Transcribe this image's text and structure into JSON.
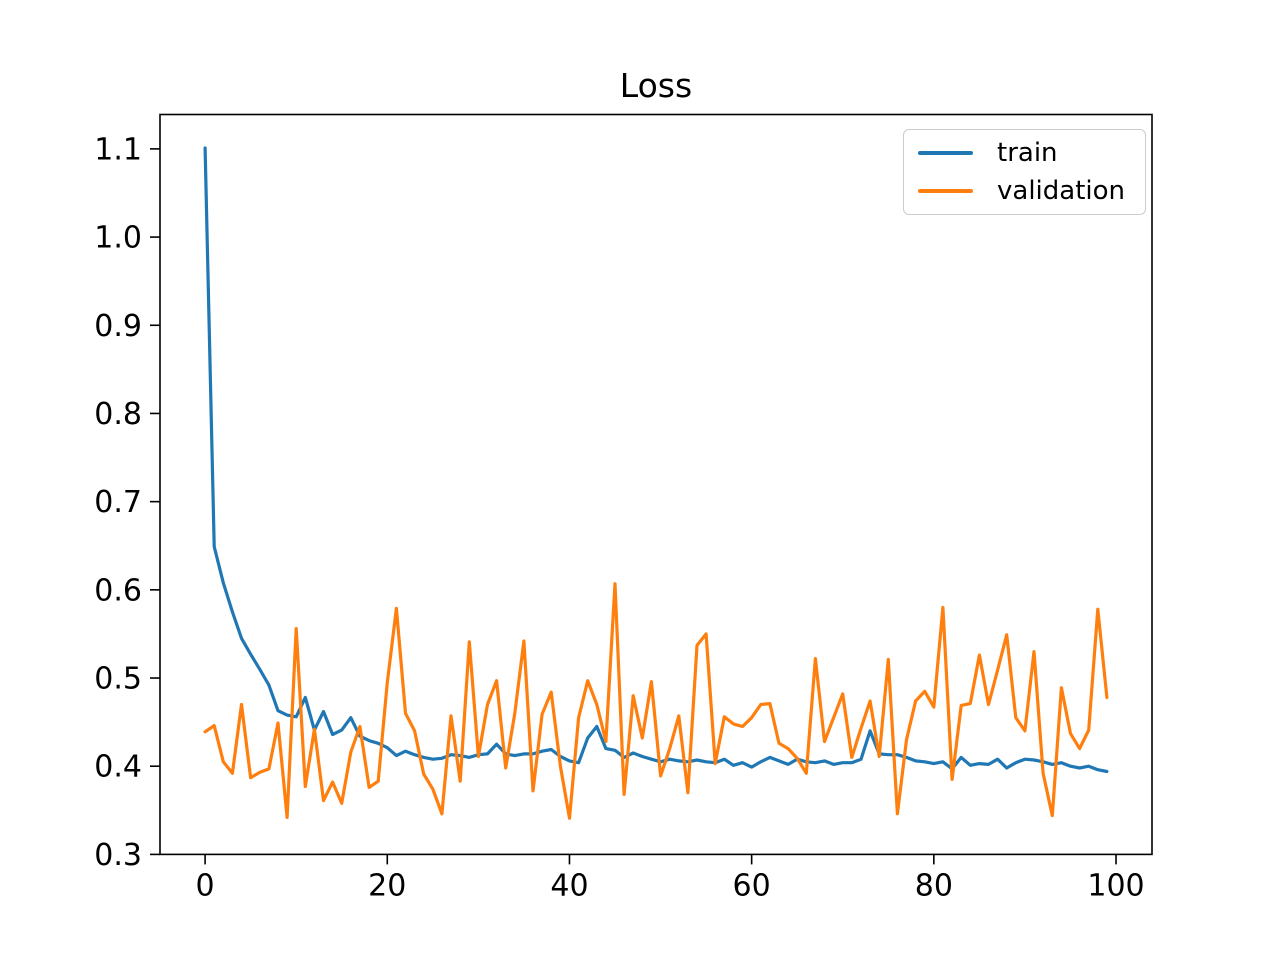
{
  "title": "Loss",
  "legend": {
    "position": "upper right",
    "entries": [
      {
        "label": "train",
        "color": "#1f77b4"
      },
      {
        "label": "validation",
        "color": "#ff7f0e"
      }
    ]
  },
  "chart_data": {
    "type": "line",
    "title": "Loss",
    "xlabel": "",
    "ylabel": "",
    "x_start": 0,
    "x_step": 1,
    "n_points": 100,
    "xlim": [
      -4.95,
      103.95
    ],
    "ylim": [
      0.3,
      1.139
    ],
    "x_ticks": [
      0,
      20,
      40,
      60,
      80,
      100
    ],
    "y_ticks": [
      0.3,
      0.4,
      0.5,
      0.6,
      0.7,
      0.8,
      0.9,
      1.0,
      1.1
    ],
    "grid": false,
    "legend_position": "upper right",
    "series": [
      {
        "name": "train",
        "color": "#1f77b4",
        "values": [
          1.101,
          0.649,
          0.608,
          0.575,
          0.545,
          0.527,
          0.51,
          0.492,
          0.463,
          0.458,
          0.456,
          0.478,
          0.441,
          0.462,
          0.436,
          0.441,
          0.455,
          0.434,
          0.429,
          0.426,
          0.421,
          0.412,
          0.417,
          0.413,
          0.41,
          0.408,
          0.409,
          0.413,
          0.412,
          0.41,
          0.413,
          0.414,
          0.425,
          0.414,
          0.412,
          0.414,
          0.414,
          0.417,
          0.419,
          0.411,
          0.406,
          0.404,
          0.432,
          0.445,
          0.42,
          0.418,
          0.41,
          0.415,
          0.411,
          0.408,
          0.405,
          0.408,
          0.406,
          0.405,
          0.407,
          0.405,
          0.404,
          0.408,
          0.401,
          0.404,
          0.399,
          0.405,
          0.41,
          0.406,
          0.402,
          0.408,
          0.405,
          0.404,
          0.406,
          0.402,
          0.404,
          0.404,
          0.408,
          0.44,
          0.414,
          0.413,
          0.413,
          0.41,
          0.406,
          0.405,
          0.403,
          0.405,
          0.397,
          0.41,
          0.401,
          0.403,
          0.402,
          0.408,
          0.398,
          0.404,
          0.408,
          0.407,
          0.405,
          0.402,
          0.404,
          0.4,
          0.398,
          0.4,
          0.396,
          0.394
        ]
      },
      {
        "name": "validation",
        "color": "#ff7f0e",
        "values": [
          0.439,
          0.446,
          0.405,
          0.392,
          0.47,
          0.387,
          0.393,
          0.397,
          0.449,
          0.342,
          0.556,
          0.377,
          0.442,
          0.361,
          0.382,
          0.358,
          0.416,
          0.445,
          0.376,
          0.383,
          0.495,
          0.579,
          0.46,
          0.44,
          0.391,
          0.374,
          0.346,
          0.457,
          0.383,
          0.541,
          0.411,
          0.47,
          0.497,
          0.398,
          0.46,
          0.542,
          0.372,
          0.459,
          0.484,
          0.4,
          0.341,
          0.455,
          0.497,
          0.47,
          0.428,
          0.607,
          0.368,
          0.48,
          0.432,
          0.496,
          0.389,
          0.42,
          0.457,
          0.37,
          0.537,
          0.55,
          0.403,
          0.456,
          0.448,
          0.445,
          0.455,
          0.47,
          0.471,
          0.426,
          0.42,
          0.409,
          0.392,
          0.522,
          0.428,
          0.455,
          0.482,
          0.41,
          0.443,
          0.474,
          0.411,
          0.521,
          0.346,
          0.43,
          0.474,
          0.485,
          0.467,
          0.58,
          0.385,
          0.469,
          0.471,
          0.526,
          0.47,
          0.509,
          0.549,
          0.455,
          0.44,
          0.53,
          0.392,
          0.344,
          0.489,
          0.437,
          0.42,
          0.441,
          0.578,
          0.478
        ]
      }
    ]
  }
}
